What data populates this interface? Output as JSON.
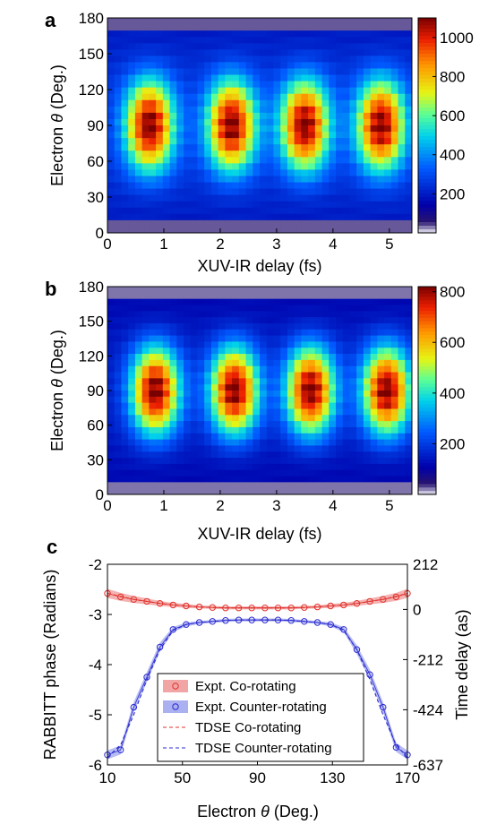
{
  "chart_data": [
    {
      "type": "heatmap",
      "panel_label": "a",
      "xlabel": "XUV-IR delay (fs)",
      "ylabel_prefix": "Electron ",
      "ylabel_symbol": "θ",
      "ylabel_suffix": " (Deg.)",
      "xlim": [
        0,
        5.4
      ],
      "ylim": [
        0,
        180
      ],
      "xticks": [
        0,
        1,
        2,
        3,
        4,
        5
      ],
      "yticks": [
        0,
        30,
        60,
        90,
        120,
        150,
        180
      ],
      "colorbar": {
        "min": 0,
        "max": 1100,
        "ticks": [
          200,
          400,
          600,
          800,
          1000
        ]
      },
      "peak_delays_fs": [
        0.75,
        2.2,
        3.5,
        4.85
      ],
      "peak_angle_deg": 90,
      "peak_value": 1100,
      "min_value": 250
    },
    {
      "type": "heatmap",
      "panel_label": "b",
      "xlabel": "XUV-IR delay (fs)",
      "ylabel_prefix": "Electron ",
      "ylabel_symbol": "θ",
      "ylabel_suffix": " (Deg.)",
      "xlim": [
        0,
        5.4
      ],
      "ylim": [
        0,
        180
      ],
      "xticks": [
        0,
        1,
        2,
        3,
        4,
        5
      ],
      "yticks": [
        0,
        30,
        60,
        90,
        120,
        150,
        180
      ],
      "colorbar": {
        "min": 0,
        "max": 820,
        "ticks": [
          200,
          400,
          600,
          800
        ]
      },
      "peak_delays_fs": [
        0.85,
        2.25,
        3.6,
        4.95
      ],
      "peak_angle_deg": 90,
      "peak_value": 820,
      "min_value": 150
    },
    {
      "type": "line",
      "panel_label": "c",
      "xlabel_prefix": "Electron ",
      "xlabel_symbol": "θ",
      "xlabel_suffix": "  (Deg.)",
      "ylabel": "RABBITT phase (Radians)",
      "ylabel_right": "Time delay (as)",
      "xlim": [
        10,
        170
      ],
      "ylim": [
        -6,
        -2
      ],
      "xticks": [
        10,
        50,
        90,
        130,
        170
      ],
      "yticks": [
        -6,
        -5,
        -4,
        -3,
        -2
      ],
      "yticks_right": [
        {
          "y": -2,
          "label": "212"
        },
        {
          "y": -2.9,
          "label": "0"
        },
        {
          "y": -3.9,
          "label": "-212"
        },
        {
          "y": -4.9,
          "label": "-424"
        },
        {
          "y": -6,
          "label": "-637"
        }
      ],
      "x": [
        10,
        17,
        24,
        31,
        38,
        45,
        52,
        59,
        66,
        73,
        80,
        87,
        94,
        101,
        108,
        115,
        122,
        129,
        136,
        143,
        150,
        157,
        164,
        170
      ],
      "series": [
        {
          "name": "Expt. Co-rotating",
          "color": "#e0322b",
          "band_color": "#f2a5a5",
          "values": [
            -2.58,
            -2.65,
            -2.7,
            -2.74,
            -2.78,
            -2.81,
            -2.83,
            -2.85,
            -2.86,
            -2.87,
            -2.87,
            -2.87,
            -2.87,
            -2.87,
            -2.87,
            -2.86,
            -2.85,
            -2.83,
            -2.81,
            -2.78,
            -2.74,
            -2.7,
            -2.65,
            -2.58
          ],
          "band": [
            0.09,
            0.08,
            0.07,
            0.06,
            0.05,
            0.04,
            0.04,
            0.03,
            0.03,
            0.03,
            0.03,
            0.03,
            0.03,
            0.03,
            0.03,
            0.03,
            0.03,
            0.04,
            0.04,
            0.05,
            0.06,
            0.07,
            0.08,
            0.09
          ]
        },
        {
          "name": "Expt. Counter-rotating",
          "color": "#2a2ad0",
          "band_color": "#aab0f0",
          "values": [
            -5.8,
            -5.7,
            -4.85,
            -4.25,
            -3.65,
            -3.3,
            -3.2,
            -3.16,
            -3.14,
            -3.12,
            -3.11,
            -3.11,
            -3.11,
            -3.11,
            -3.12,
            -3.14,
            -3.16,
            -3.2,
            -3.3,
            -3.7,
            -4.2,
            -4.85,
            -5.65,
            -5.8
          ],
          "band": [
            0.09,
            0.09,
            0.1,
            0.1,
            0.09,
            0.05,
            0.04,
            0.03,
            0.03,
            0.03,
            0.03,
            0.03,
            0.03,
            0.03,
            0.03,
            0.03,
            0.03,
            0.04,
            0.05,
            0.09,
            0.1,
            0.1,
            0.09,
            0.09
          ]
        },
        {
          "name": "TDSE Co-rotating",
          "color": "#e0322b",
          "style": "dashed",
          "values": [
            -2.58,
            -2.64,
            -2.7,
            -2.74,
            -2.78,
            -2.81,
            -2.83,
            -2.85,
            -2.86,
            -2.87,
            -2.87,
            -2.87,
            -2.87,
            -2.87,
            -2.87,
            -2.86,
            -2.85,
            -2.83,
            -2.81,
            -2.78,
            -2.74,
            -2.7,
            -2.64,
            -2.58
          ]
        },
        {
          "name": "TDSE Counter-rotating",
          "color": "#2a2ad0",
          "style": "dashed",
          "values": [
            -5.85,
            -5.6,
            -5.0,
            -4.3,
            -3.7,
            -3.32,
            -3.2,
            -3.16,
            -3.14,
            -3.12,
            -3.11,
            -3.11,
            -3.11,
            -3.11,
            -3.12,
            -3.14,
            -3.16,
            -3.2,
            -3.32,
            -3.7,
            -4.3,
            -5.0,
            -5.6,
            -5.85
          ]
        }
      ],
      "legend_placement": "lower-center"
    }
  ]
}
